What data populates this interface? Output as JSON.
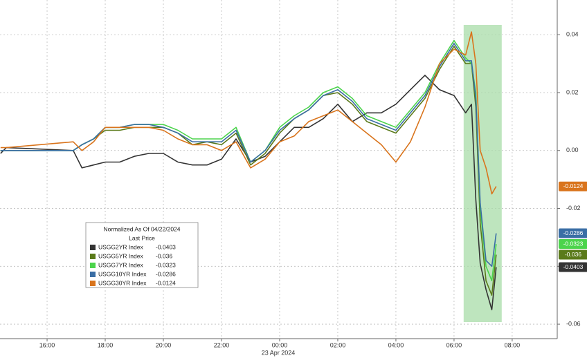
{
  "chart_data": {
    "type": "line",
    "legend_title": "Normalized As Of 04/22/2024",
    "legend_subtitle": "Last Price",
    "date_label": "23 Apr 2024",
    "x": [
      14.4,
      14.6,
      16.9,
      17.2,
      17.6,
      18.0,
      18.5,
      19.0,
      19.5,
      20.0,
      20.5,
      21.0,
      21.5,
      22.0,
      22.5,
      23.0,
      23.5,
      24.0,
      24.5,
      25.0,
      25.5,
      26.0,
      26.5,
      27.0,
      27.5,
      28.0,
      28.5,
      29.0,
      29.5,
      30.0,
      30.4,
      30.6,
      30.75,
      30.9,
      31.1,
      31.3,
      31.45
    ],
    "xlim": [
      14.38,
      33.55
    ],
    "xticks": [
      {
        "value": 16,
        "label": "16:00"
      },
      {
        "value": 18,
        "label": "18:00"
      },
      {
        "value": 20,
        "label": "20:00"
      },
      {
        "value": 22,
        "label": "22:00"
      },
      {
        "value": 24,
        "label": "00:00"
      },
      {
        "value": 26,
        "label": "02:00"
      },
      {
        "value": 28,
        "label": "04:00"
      },
      {
        "value": 30,
        "label": "06:00"
      },
      {
        "value": 32,
        "label": "08:00"
      }
    ],
    "ylim": [
      -0.065,
      0.052
    ],
    "yticks": [
      0.04,
      0.02,
      {
        "value": 0,
        "label": "0.00"
      },
      -0.02,
      -0.04,
      -0.06
    ],
    "grid": true,
    "highlight": [
      30.33,
      31.64
    ],
    "highlight_color": "#a8dca8",
    "series": [
      {
        "name": "USGG2YR Index",
        "color": "#333333",
        "values": [
          -0.001,
          0.001,
          0,
          -0.006,
          -0.005,
          -0.004,
          -0.004,
          -0.002,
          -0.001,
          -0.001,
          -0.004,
          -0.005,
          -0.005,
          -0.003,
          0.004,
          -0.004,
          -0.002,
          0.003,
          0.008,
          0.008,
          0.011,
          0.016,
          0.01,
          0.013,
          0.013,
          0.016,
          0.021,
          0.026,
          0.021,
          0.019,
          0.013,
          0.016,
          -0.017,
          -0.039,
          -0.048,
          -0.055,
          -0.0403
        ]
      },
      {
        "name": "USGG5YR Index",
        "color": "#5a7a1a",
        "values": [
          0,
          0,
          0,
          0.002,
          0.004,
          0.007,
          0.007,
          0.008,
          0.008,
          0.008,
          0.006,
          0.002,
          0.003,
          0.002,
          0.006,
          -0.005,
          -0.001,
          0.006,
          0.011,
          0.014,
          0.019,
          0.02,
          0.016,
          0.01,
          0.008,
          0.006,
          0.012,
          0.018,
          0.028,
          0.036,
          0.03,
          0.03,
          0.015,
          -0.025,
          -0.045,
          -0.05,
          -0.036
        ]
      },
      {
        "name": "USGG7YR Index",
        "color": "#4cd44c",
        "values": [
          0,
          0,
          0,
          0.002,
          0.004,
          0.008,
          0.008,
          0.009,
          0.009,
          0.009,
          0.007,
          0.004,
          0.004,
          0.004,
          0.008,
          -0.004,
          0,
          0.008,
          0.012,
          0.015,
          0.02,
          0.022,
          0.018,
          0.012,
          0.01,
          0.008,
          0.014,
          0.02,
          0.03,
          0.038,
          0.032,
          0.03,
          0.02,
          -0.02,
          -0.04,
          -0.045,
          -0.0323
        ]
      },
      {
        "name": "USGG10YR Index",
        "color": "#3a6ea5",
        "values": [
          0,
          0,
          0,
          0.002,
          0.004,
          0.008,
          0.008,
          0.009,
          0.009,
          0.008,
          0.006,
          0.003,
          0.003,
          0.003,
          0.007,
          -0.004,
          0,
          0.007,
          0.011,
          0.014,
          0.019,
          0.021,
          0.017,
          0.011,
          0.009,
          0.007,
          0.013,
          0.019,
          0.029,
          0.037,
          0.031,
          0.031,
          0.018,
          -0.018,
          -0.038,
          -0.04,
          -0.0286
        ]
      },
      {
        "name": "USGG30YR Index",
        "color": "#d9741c",
        "values": [
          0.001,
          0.001,
          0.003,
          0,
          0.003,
          0.008,
          0.008,
          0.008,
          0.008,
          0.007,
          0.004,
          0.002,
          0.002,
          0,
          0.003,
          -0.006,
          -0.003,
          0.003,
          0.005,
          0.01,
          0.012,
          0.014,
          0.01,
          0.006,
          0.002,
          -0.004,
          0.003,
          0.015,
          0.03,
          0.035,
          0.033,
          0.041,
          0.03,
          0,
          -0.006,
          -0.015,
          -0.0124
        ]
      }
    ]
  }
}
